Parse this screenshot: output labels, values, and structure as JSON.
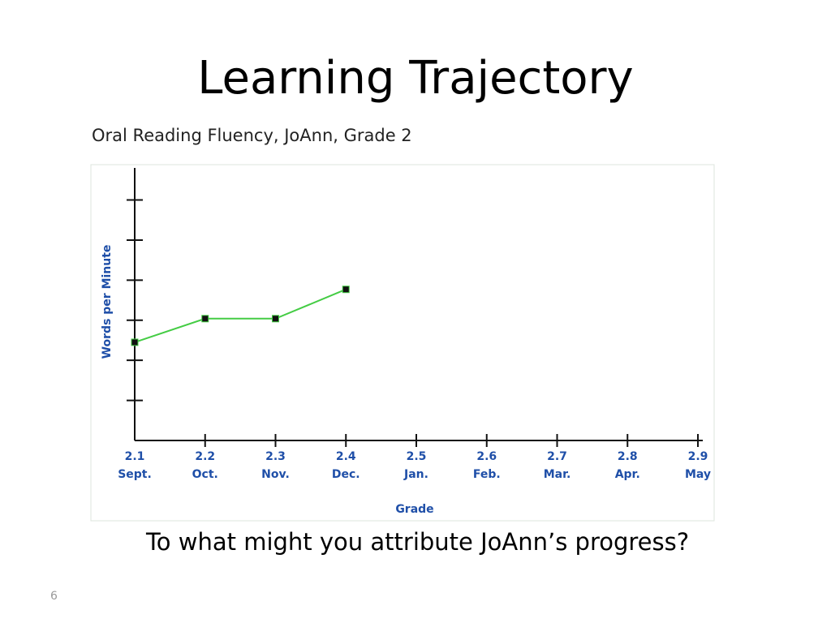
{
  "slide": {
    "title": "Learning Trajectory",
    "question": "To what might you attribute JoAnn’s progress?",
    "page_number": "6"
  },
  "chart_data": {
    "type": "line",
    "title": "Oral Reading Fluency, JoAnn, Grade 2",
    "x_label": "Grade",
    "y_label": "Words per Minute",
    "categories": [
      "2.1",
      "2.2",
      "2.3",
      "2.4",
      "2.5",
      "2.6",
      "2.7",
      "2.8",
      "2.9"
    ],
    "months": [
      "Sept.",
      "Oct.",
      "Nov.",
      "Dec.",
      "Jan.",
      "Feb.",
      "Mar.",
      "Apr.",
      "May"
    ],
    "series": [
      {
        "color": "#44cc44",
        "values": [
          2.45,
          3.04,
          3.04,
          3.77,
          null,
          null,
          null,
          null,
          null
        ]
      }
    ],
    "ylim": [
      0,
      6.8
    ],
    "yticks": [
      1,
      2,
      3,
      4,
      5,
      6
    ]
  }
}
